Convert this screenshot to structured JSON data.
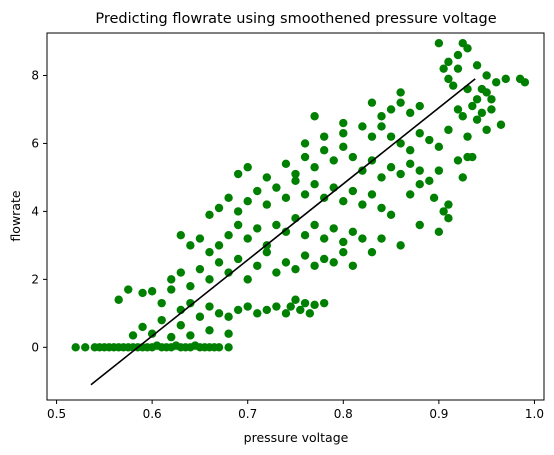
{
  "chart_data": {
    "type": "scatter",
    "title": "Predicting flowrate using smoothened pressure voltage",
    "xlabel": "pressure voltage",
    "ylabel": "flowrate",
    "xlim": [
      0.49,
      1.01
    ],
    "ylim": [
      -1.55,
      9.25
    ],
    "xticks": [
      {
        "value": 0.5,
        "label": "0.5"
      },
      {
        "value": 0.6,
        "label": "0.6"
      },
      {
        "value": 0.7,
        "label": "0.7"
      },
      {
        "value": 0.8,
        "label": "0.8"
      },
      {
        "value": 0.9,
        "label": "0.9"
      },
      {
        "value": 1.0,
        "label": "1.0"
      }
    ],
    "yticks": [
      {
        "value": 0,
        "label": "0"
      },
      {
        "value": 2,
        "label": "2"
      },
      {
        "value": 4,
        "label": "4"
      },
      {
        "value": 6,
        "label": "6"
      },
      {
        "value": 8,
        "label": "8"
      }
    ],
    "grid": false,
    "legend": "none",
    "series": [
      {
        "kind": "points",
        "color": "#008000",
        "points": [
          [
            0.52,
            0.0
          ],
          [
            0.53,
            0.0
          ],
          [
            0.54,
            0.0
          ],
          [
            0.545,
            0.0
          ],
          [
            0.55,
            0.0
          ],
          [
            0.555,
            0.0
          ],
          [
            0.56,
            0.0
          ],
          [
            0.565,
            0.0
          ],
          [
            0.57,
            0.0
          ],
          [
            0.575,
            0.0
          ],
          [
            0.58,
            0.0
          ],
          [
            0.585,
            0.0
          ],
          [
            0.59,
            0.0
          ],
          [
            0.595,
            0.0
          ],
          [
            0.6,
            0.0
          ],
          [
            0.61,
            0.0
          ],
          [
            0.62,
            0.0
          ],
          [
            0.63,
            0.0
          ],
          [
            0.64,
            0.0
          ],
          [
            0.65,
            0.0
          ],
          [
            0.66,
            0.0
          ],
          [
            0.67,
            0.0
          ],
          [
            0.68,
            0.0
          ],
          [
            0.605,
            0.05
          ],
          [
            0.615,
            0.0
          ],
          [
            0.625,
            0.05
          ],
          [
            0.635,
            0.0
          ],
          [
            0.645,
            0.05
          ],
          [
            0.655,
            0.0
          ],
          [
            0.665,
            0.0
          ],
          [
            0.58,
            0.35
          ],
          [
            0.6,
            0.4
          ],
          [
            0.62,
            0.3
          ],
          [
            0.64,
            0.35
          ],
          [
            0.66,
            0.5
          ],
          [
            0.68,
            0.4
          ],
          [
            0.565,
            1.4
          ],
          [
            0.59,
            0.6
          ],
          [
            0.61,
            0.8
          ],
          [
            0.63,
            0.65
          ],
          [
            0.575,
            1.7
          ],
          [
            0.59,
            1.6
          ],
          [
            0.6,
            1.65
          ],
          [
            0.61,
            1.3
          ],
          [
            0.62,
            1.7
          ],
          [
            0.63,
            1.1
          ],
          [
            0.64,
            1.3
          ],
          [
            0.65,
            0.9
          ],
          [
            0.66,
            1.2
          ],
          [
            0.67,
            1.0
          ],
          [
            0.68,
            0.9
          ],
          [
            0.69,
            1.1
          ],
          [
            0.7,
            1.2
          ],
          [
            0.71,
            1.0
          ],
          [
            0.72,
            1.1
          ],
          [
            0.73,
            1.2
          ],
          [
            0.74,
            1.0
          ],
          [
            0.75,
            1.4
          ],
          [
            0.76,
            1.3
          ],
          [
            0.77,
            1.25
          ],
          [
            0.62,
            2.0
          ],
          [
            0.63,
            2.2
          ],
          [
            0.64,
            1.8
          ],
          [
            0.65,
            2.3
          ],
          [
            0.66,
            2.0
          ],
          [
            0.67,
            2.5
          ],
          [
            0.68,
            2.2
          ],
          [
            0.69,
            2.6
          ],
          [
            0.7,
            2.0
          ],
          [
            0.71,
            2.4
          ],
          [
            0.72,
            2.8
          ],
          [
            0.73,
            2.2
          ],
          [
            0.74,
            2.5
          ],
          [
            0.75,
            2.3
          ],
          [
            0.76,
            2.7
          ],
          [
            0.77,
            2.4
          ],
          [
            0.78,
            2.6
          ],
          [
            0.79,
            2.5
          ],
          [
            0.8,
            2.8
          ],
          [
            0.81,
            2.4
          ],
          [
            0.63,
            3.3
          ],
          [
            0.64,
            3.0
          ],
          [
            0.65,
            3.2
          ],
          [
            0.66,
            2.8
          ],
          [
            0.67,
            3.0
          ],
          [
            0.68,
            3.3
          ],
          [
            0.69,
            3.6
          ],
          [
            0.7,
            3.2
          ],
          [
            0.71,
            3.5
          ],
          [
            0.72,
            3.0
          ],
          [
            0.73,
            3.6
          ],
          [
            0.74,
            3.4
          ],
          [
            0.75,
            3.8
          ],
          [
            0.76,
            3.3
          ],
          [
            0.77,
            3.6
          ],
          [
            0.78,
            3.2
          ],
          [
            0.79,
            3.5
          ],
          [
            0.8,
            3.1
          ],
          [
            0.81,
            3.4
          ],
          [
            0.82,
            3.2
          ],
          [
            0.66,
            3.9
          ],
          [
            0.67,
            4.1
          ],
          [
            0.68,
            4.4
          ],
          [
            0.69,
            4.0
          ],
          [
            0.7,
            4.3
          ],
          [
            0.71,
            4.6
          ],
          [
            0.72,
            4.2
          ],
          [
            0.73,
            4.7
          ],
          [
            0.74,
            4.4
          ],
          [
            0.75,
            4.9
          ],
          [
            0.76,
            4.5
          ],
          [
            0.77,
            4.8
          ],
          [
            0.78,
            4.4
          ],
          [
            0.79,
            4.7
          ],
          [
            0.8,
            4.3
          ],
          [
            0.81,
            4.6
          ],
          [
            0.82,
            4.2
          ],
          [
            0.83,
            4.5
          ],
          [
            0.84,
            4.1
          ],
          [
            0.85,
            3.9
          ],
          [
            0.69,
            5.1
          ],
          [
            0.7,
            5.3
          ],
          [
            0.72,
            5.0
          ],
          [
            0.74,
            5.4
          ],
          [
            0.75,
            5.1
          ],
          [
            0.76,
            5.6
          ],
          [
            0.77,
            5.3
          ],
          [
            0.78,
            5.8
          ],
          [
            0.79,
            5.5
          ],
          [
            0.8,
            5.9
          ],
          [
            0.81,
            5.6
          ],
          [
            0.82,
            5.2
          ],
          [
            0.83,
            5.5
          ],
          [
            0.84,
            5.0
          ],
          [
            0.85,
            5.3
          ],
          [
            0.86,
            5.1
          ],
          [
            0.87,
            5.4
          ],
          [
            0.88,
            5.2
          ],
          [
            0.76,
            6.0
          ],
          [
            0.78,
            6.2
          ],
          [
            0.8,
            6.3
          ],
          [
            0.82,
            6.5
          ],
          [
            0.77,
            6.8
          ],
          [
            0.8,
            6.6
          ],
          [
            0.83,
            6.2
          ],
          [
            0.84,
            6.8
          ],
          [
            0.85,
            7.0
          ],
          [
            0.86,
            7.2
          ],
          [
            0.87,
            6.9
          ],
          [
            0.88,
            7.1
          ],
          [
            0.83,
            7.2
          ],
          [
            0.84,
            6.5
          ],
          [
            0.85,
            6.2
          ],
          [
            0.86,
            6.0
          ],
          [
            0.87,
            5.8
          ],
          [
            0.88,
            6.3
          ],
          [
            0.89,
            6.1
          ],
          [
            0.9,
            5.9
          ],
          [
            0.91,
            6.4
          ],
          [
            0.86,
            7.5
          ],
          [
            0.88,
            4.8
          ],
          [
            0.87,
            4.5
          ],
          [
            0.89,
            4.9
          ],
          [
            0.9,
            5.2
          ],
          [
            0.92,
            5.5
          ],
          [
            0.925,
            5.0
          ],
          [
            0.93,
            5.6
          ],
          [
            0.895,
            4.4
          ],
          [
            0.91,
            4.2
          ],
          [
            0.905,
            4.0
          ],
          [
            0.84,
            3.2
          ],
          [
            0.86,
            3.0
          ],
          [
            0.83,
            2.8
          ],
          [
            0.88,
            3.6
          ],
          [
            0.9,
            3.4
          ],
          [
            0.91,
            3.8
          ],
          [
            0.78,
            1.3
          ],
          [
            0.755,
            1.1
          ],
          [
            0.765,
            1.0
          ],
          [
            0.745,
            1.2
          ],
          [
            0.9,
            8.95
          ],
          [
            0.91,
            8.4
          ],
          [
            0.92,
            8.6
          ],
          [
            0.93,
            8.8
          ],
          [
            0.92,
            8.2
          ],
          [
            0.91,
            7.9
          ],
          [
            0.93,
            7.6
          ],
          [
            0.94,
            7.3
          ],
          [
            0.95,
            7.5
          ],
          [
            0.96,
            7.8
          ],
          [
            0.935,
            7.1
          ],
          [
            0.945,
            6.9
          ],
          [
            0.955,
            7.0
          ],
          [
            0.965,
            6.55
          ],
          [
            0.95,
            6.4
          ],
          [
            0.94,
            6.7
          ],
          [
            0.935,
            5.6
          ],
          [
            0.925,
            8.95
          ],
          [
            0.94,
            8.3
          ],
          [
            0.97,
            7.9
          ],
          [
            0.985,
            7.9
          ],
          [
            0.99,
            7.8
          ],
          [
            0.93,
            6.2
          ],
          [
            0.92,
            7.0
          ],
          [
            0.945,
            7.6
          ],
          [
            0.955,
            7.3
          ],
          [
            0.925,
            6.8
          ],
          [
            0.915,
            7.7
          ],
          [
            0.905,
            8.2
          ],
          [
            0.95,
            8.0
          ]
        ]
      },
      {
        "kind": "fit-line",
        "color": "#000000",
        "points": [
          [
            0.536,
            -1.1
          ],
          [
            0.938,
            7.9
          ]
        ]
      }
    ]
  }
}
